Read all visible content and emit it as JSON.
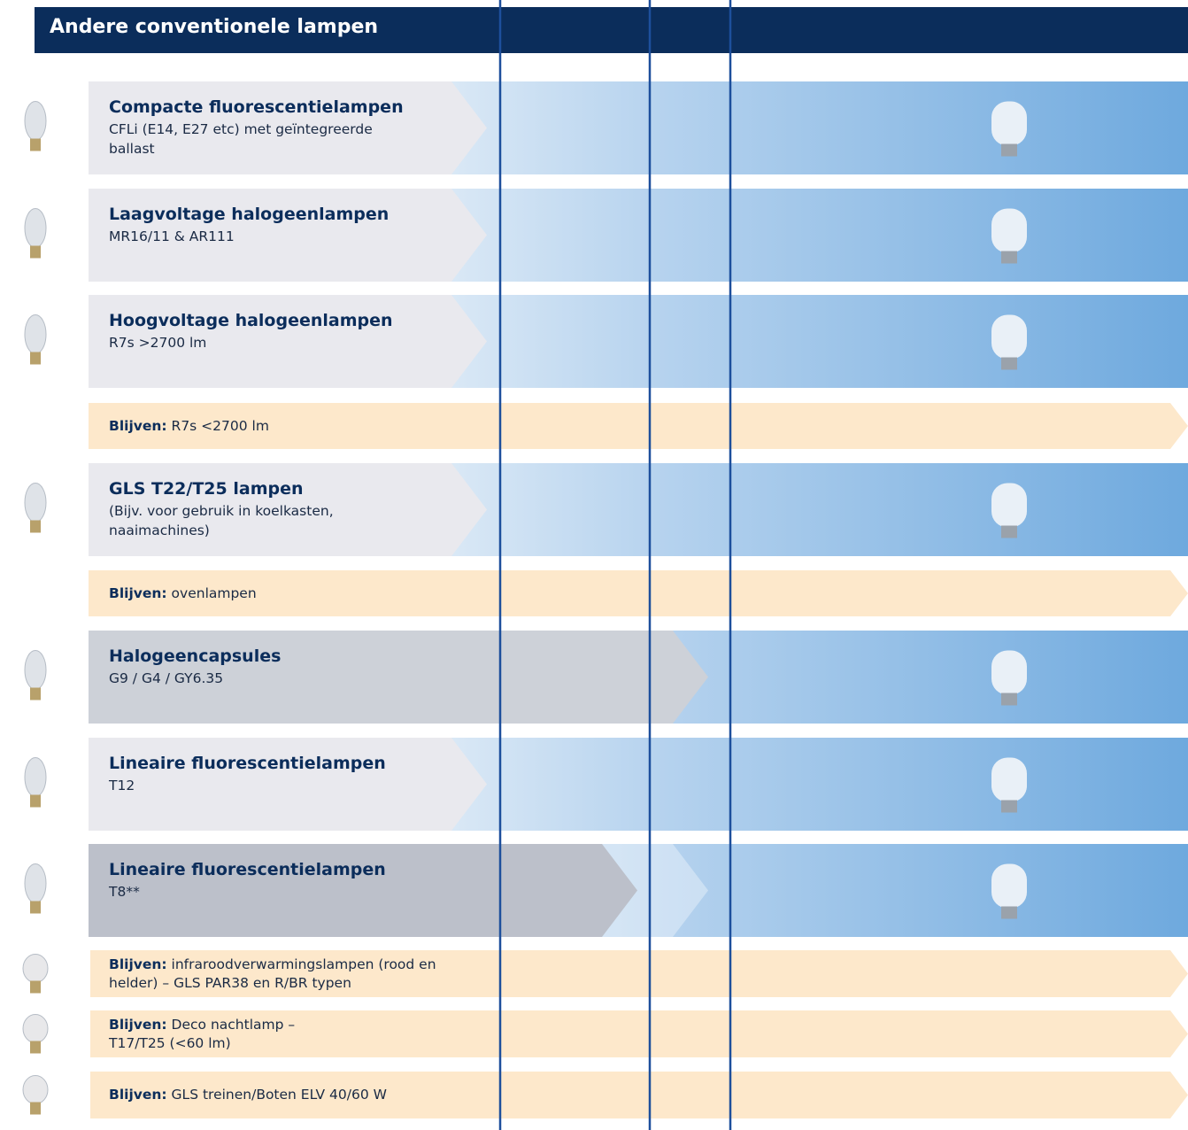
{
  "header": {
    "title": "Andere conventionele lampen"
  },
  "rows": [
    {
      "title": "Compacte fluorescentielampen",
      "subtitle": "CFLi (E14, E27 etc) met geïntegreerde ballast"
    },
    {
      "title": "Laagvoltage halogeenlampen",
      "subtitle": "MR16/11 & AR111"
    },
    {
      "title": "Hoogvoltage halogeenlampen",
      "subtitle": "R7s >2700 lm"
    },
    {
      "label": "Blijven:",
      "text": "R7s <2700 lm"
    },
    {
      "title": "GLS T22/T25 lampen",
      "subtitle": "(Bijv. voor gebruik in koelkasten, naaimachines)"
    },
    {
      "label": "Blijven:",
      "text": "ovenlampen"
    },
    {
      "title": "Halogeencapsules",
      "subtitle": "G9 / G4 / GY6.35"
    },
    {
      "title": "Lineaire fluorescentielampen",
      "subtitle": "T12"
    },
    {
      "title": "Lineaire fluorescentielampen",
      "subtitle": "T8**"
    },
    {
      "label": "Blijven:",
      "text": "infraroodverwarmingslampen (rood en helder) – GLS PAR38 en R/BR typen"
    },
    {
      "label": "Blijven:",
      "text": "Deco nachtlamp – T17/T25 (<60 lm)"
    },
    {
      "label": "Blijven:",
      "text": "GLS treinen/Boten ELV 40/60 W"
    }
  ]
}
